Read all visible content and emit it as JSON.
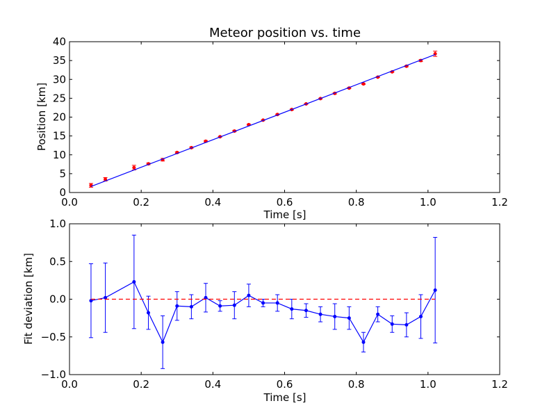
{
  "chart_data": [
    {
      "type": "scatter",
      "title": "Meteor position vs. time",
      "xlabel": "Time [s]",
      "ylabel": "Position [km]",
      "xlim": [
        0.0,
        1.2
      ],
      "ylim": [
        0,
        40
      ],
      "xticks": [
        "0.0",
        "0.2",
        "0.4",
        "0.6",
        "0.8",
        "1.0",
        "1.2"
      ],
      "yticks": [
        "0",
        "5",
        "10",
        "15",
        "20",
        "25",
        "30",
        "35",
        "40"
      ],
      "grid": false,
      "series": [
        {
          "kind": "errorbar-points",
          "color": "#ff0000",
          "x": [
            0.06,
            0.1,
            0.18,
            0.22,
            0.26,
            0.3,
            0.34,
            0.38,
            0.42,
            0.46,
            0.5,
            0.54,
            0.58,
            0.62,
            0.66,
            0.7,
            0.74,
            0.78,
            0.82,
            0.86,
            0.9,
            0.94,
            0.98,
            1.02
          ],
          "y": [
            1.9,
            3.5,
            6.6,
            7.6,
            8.7,
            10.6,
            11.9,
            13.6,
            14.8,
            16.3,
            18.0,
            19.2,
            20.7,
            22.0,
            23.5,
            24.9,
            26.3,
            27.7,
            28.8,
            30.6,
            32.0,
            33.5,
            35.0,
            36.8
          ],
          "yerr": [
            0.5,
            0.47,
            0.62,
            0.22,
            0.35,
            0.2,
            0.17,
            0.19,
            0.09,
            0.18,
            0.15,
            0.06,
            0.11,
            0.13,
            0.09,
            0.1,
            0.17,
            0.15,
            0.13,
            0.1,
            0.11,
            0.16,
            0.28,
            0.7
          ]
        },
        {
          "kind": "fit-line",
          "color": "#0000ff",
          "x": [
            0.06,
            1.02
          ],
          "y": [
            1.6,
            36.6
          ]
        }
      ]
    },
    {
      "type": "line",
      "xlabel": "Time [s]",
      "ylabel": "Fit deviation [km]",
      "xlim": [
        0.0,
        1.2
      ],
      "ylim": [
        -1.0,
        1.0
      ],
      "xticks": [
        "0.0",
        "0.2",
        "0.4",
        "0.6",
        "0.8",
        "1.0",
        "1.2"
      ],
      "yticks": [
        "−1.0",
        "−0.5",
        "0.0",
        "0.5",
        "1.0"
      ],
      "grid": false,
      "series": [
        {
          "kind": "errorbar-line",
          "color": "#0000ff",
          "x": [
            0.06,
            0.1,
            0.18,
            0.22,
            0.26,
            0.3,
            0.34,
            0.38,
            0.42,
            0.46,
            0.5,
            0.54,
            0.58,
            0.62,
            0.66,
            0.7,
            0.74,
            0.78,
            0.82,
            0.86,
            0.9,
            0.94,
            0.98,
            1.02
          ],
          "y": [
            -0.02,
            0.02,
            0.23,
            -0.18,
            -0.57,
            -0.09,
            -0.1,
            0.02,
            -0.09,
            -0.08,
            0.05,
            -0.05,
            -0.05,
            -0.13,
            -0.15,
            -0.2,
            -0.23,
            -0.25,
            -0.57,
            -0.2,
            -0.33,
            -0.34,
            -0.23,
            0.12
          ],
          "yerr": [
            0.49,
            0.46,
            0.62,
            0.22,
            0.35,
            0.19,
            0.16,
            0.19,
            0.07,
            0.18,
            0.15,
            0.05,
            0.11,
            0.13,
            0.09,
            0.1,
            0.17,
            0.15,
            0.13,
            0.1,
            0.11,
            0.16,
            0.29,
            0.7
          ]
        },
        {
          "kind": "reference-line",
          "color": "#ff0000",
          "style": "dashed",
          "x": [
            0.06,
            1.02
          ],
          "y": [
            0.0,
            0.0
          ]
        }
      ]
    }
  ]
}
